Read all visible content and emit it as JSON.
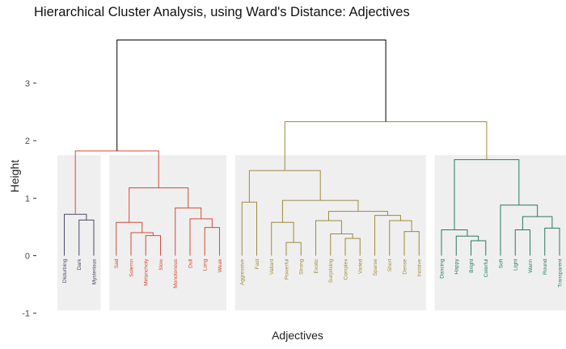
{
  "chart_data": {
    "type": "dendrogram",
    "title": "Hierarchical Cluster Analysis, using Ward's Distance: Adjectives",
    "xlabel": "Adjectives",
    "ylabel": "Height",
    "ylim": [
      -1.0,
      3.75
    ],
    "yticks": [
      -1,
      0,
      1,
      2,
      3
    ],
    "grid": false,
    "leaves": [
      "Disturbing",
      "Dark",
      "Mysterious",
      "Sad",
      "Solemn",
      "Melancholy",
      "Slow",
      "Monotonous",
      "Dull",
      "Long",
      "Weak",
      "Aggressive",
      "Fast",
      "Valiant",
      "Powerful",
      "Strong",
      "Exotic",
      "Surprising",
      "Complex",
      "Varied",
      "Sparse",
      "Short",
      "Dense",
      "Incisive",
      "Dancing",
      "Happy",
      "Bright",
      "Colorful",
      "Soft",
      "Light",
      "Warm",
      "Round",
      "Transparent"
    ],
    "clusters": [
      {
        "leaves": [
          0,
          2
        ],
        "color": "#4a4a6a"
      },
      {
        "leaves": [
          3,
          10
        ],
        "color": "#d64b37"
      },
      {
        "leaves": [
          11,
          23
        ],
        "color": "#9c8a3e"
      },
      {
        "leaves": [
          24,
          32
        ],
        "color": "#2b7a5f"
      }
    ],
    "merges": [
      {
        "a": "L1",
        "b": "L2",
        "h": 0.62,
        "color": "#4a4a6a"
      },
      {
        "a": "L0",
        "b": "N0",
        "h": 0.72,
        "color": "#4a4a6a"
      },
      {
        "a": "L5",
        "b": "L6",
        "h": 0.35,
        "color": "#d64b37"
      },
      {
        "a": "L4",
        "b": "N2",
        "h": 0.4,
        "color": "#d64b37"
      },
      {
        "a": "L3",
        "b": "N3",
        "h": 0.58,
        "color": "#d64b37"
      },
      {
        "a": "L9",
        "b": "L10",
        "h": 0.49,
        "color": "#d64b37"
      },
      {
        "a": "L8",
        "b": "N5",
        "h": 0.64,
        "color": "#d64b37"
      },
      {
        "a": "L7",
        "b": "N6",
        "h": 0.83,
        "color": "#d64b37"
      },
      {
        "a": "N4",
        "b": "N7",
        "h": 1.18,
        "color": "#d64b37"
      },
      {
        "a": "N1",
        "b": "N8",
        "h": 1.82,
        "color": "#d64b37"
      },
      {
        "a": "L11",
        "b": "L12",
        "h": 0.93,
        "color": "#9c8a3e"
      },
      {
        "a": "L14",
        "b": "L15",
        "h": 0.23,
        "color": "#9c8a3e"
      },
      {
        "a": "L13",
        "b": "N11",
        "h": 0.58,
        "color": "#9c8a3e"
      },
      {
        "a": "L18",
        "b": "L19",
        "h": 0.3,
        "color": "#9c8a3e"
      },
      {
        "a": "L17",
        "b": "N13",
        "h": 0.38,
        "color": "#9c8a3e"
      },
      {
        "a": "L16",
        "b": "N14",
        "h": 0.61,
        "color": "#9c8a3e"
      },
      {
        "a": "L22",
        "b": "L23",
        "h": 0.42,
        "color": "#9c8a3e"
      },
      {
        "a": "L21",
        "b": "N16",
        "h": 0.61,
        "color": "#9c8a3e"
      },
      {
        "a": "L20",
        "b": "N17",
        "h": 0.7,
        "color": "#9c8a3e"
      },
      {
        "a": "N15",
        "b": "N18",
        "h": 0.77,
        "color": "#9c8a3e"
      },
      {
        "a": "N12",
        "b": "N19",
        "h": 0.96,
        "color": "#9c8a3e"
      },
      {
        "a": "N10",
        "b": "N20",
        "h": 1.48,
        "color": "#9c8a3e"
      },
      {
        "a": "L26",
        "b": "L27",
        "h": 0.26,
        "color": "#2b7a5f"
      },
      {
        "a": "L25",
        "b": "N22",
        "h": 0.34,
        "color": "#2b7a5f"
      },
      {
        "a": "L24",
        "b": "N23",
        "h": 0.45,
        "color": "#2b7a5f"
      },
      {
        "a": "L29",
        "b": "L30",
        "h": 0.45,
        "color": "#2b7a5f"
      },
      {
        "a": "L31",
        "b": "L32",
        "h": 0.48,
        "color": "#2b7a5f"
      },
      {
        "a": "N25",
        "b": "N26",
        "h": 0.68,
        "color": "#2b7a5f"
      },
      {
        "a": "L28",
        "b": "N27",
        "h": 0.88,
        "color": "#2b7a5f"
      },
      {
        "a": "N24",
        "b": "N28",
        "h": 1.67,
        "color": "#2b7a5f"
      },
      {
        "a": "N21",
        "b": "N29",
        "h": 2.33,
        "color": "#9c8a3e"
      },
      {
        "a": "N9",
        "b": "N30",
        "h": 3.75,
        "color": "#000000"
      }
    ]
  }
}
